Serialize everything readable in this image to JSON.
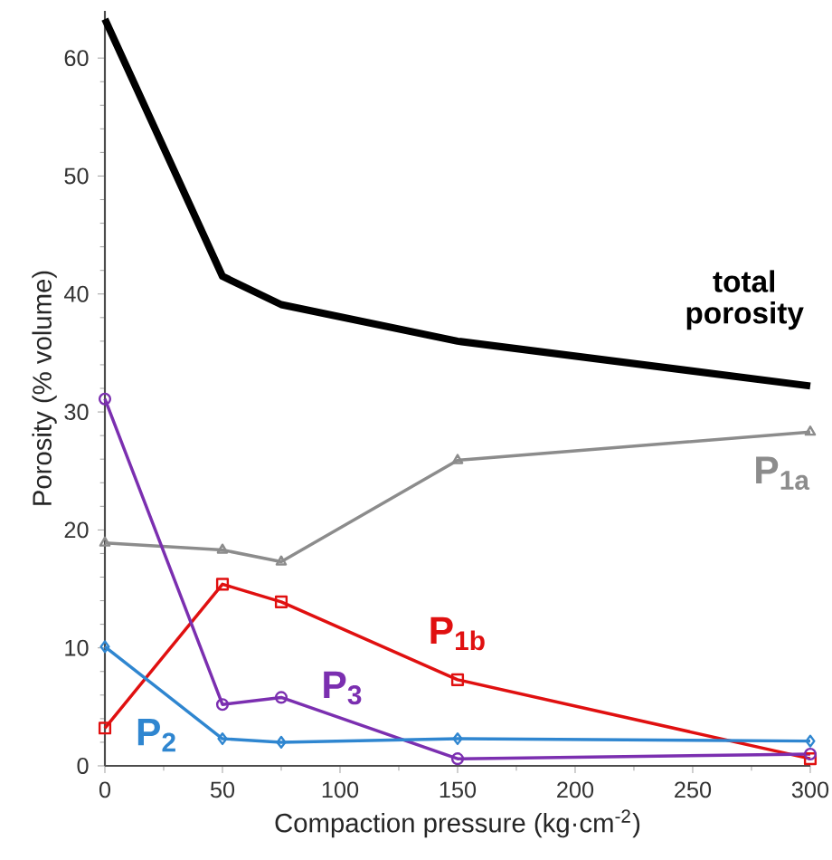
{
  "chart_data": {
    "type": "line",
    "xlabel": "Compaction pressure (kg·cm$^{-2}$)",
    "ylabel": "Porosity (% volume)",
    "xlim": [
      0,
      300
    ],
    "ylim": [
      0,
      64
    ],
    "xticks": [
      0,
      50,
      100,
      150,
      200,
      250,
      300
    ],
    "yticks": [
      0,
      10,
      20,
      30,
      40,
      50,
      60
    ],
    "x": [
      0,
      50,
      75,
      150,
      300
    ],
    "series": [
      {
        "name": "total porosity",
        "color": "#000000",
        "marker": "none",
        "values": [
          63.3,
          41.5,
          39.1,
          36.0,
          32.2
        ]
      },
      {
        "name": "P$_{1a}$",
        "color": "#8c8c8c",
        "marker": "triangle",
        "values": [
          18.9,
          18.3,
          17.3,
          25.9,
          28.3
        ]
      },
      {
        "name": "P$_{1b}$",
        "color": "#e01010",
        "marker": "square",
        "values": [
          3.2,
          15.4,
          13.9,
          7.3,
          0.6
        ]
      },
      {
        "name": "P$_{3}$",
        "color": "#7b2fb0",
        "marker": "circle",
        "values": [
          31.1,
          5.2,
          5.8,
          0.6,
          1.0
        ]
      },
      {
        "name": "P$_{2}$",
        "color": "#2f86d0",
        "marker": "diamond",
        "values": [
          10.1,
          2.3,
          2.0,
          2.3,
          2.1
        ]
      }
    ]
  }
}
